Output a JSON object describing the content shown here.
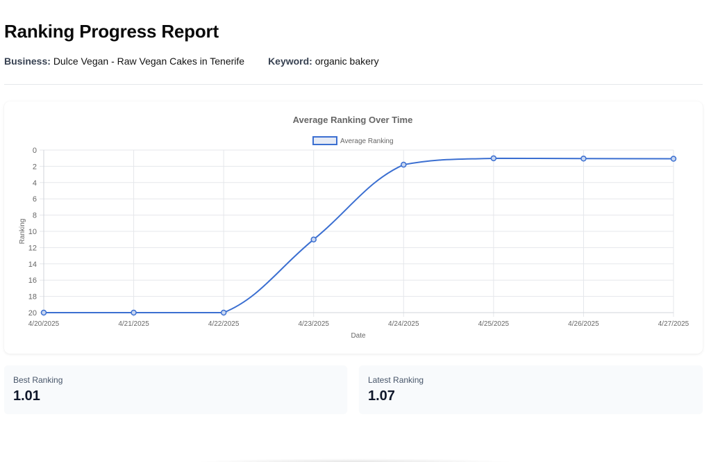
{
  "report": {
    "title": "Ranking Progress Report",
    "business_label": "Business:",
    "business_value": "Dulce Vegan - Raw Vegan Cakes in Tenerife",
    "keyword_label": "Keyword:",
    "keyword_value": "organic bakery"
  },
  "stats": {
    "best_label": "Best Ranking",
    "best_value": "1.01",
    "latest_label": "Latest Ranking",
    "latest_value": "1.07"
  },
  "colors": {
    "series": "#3b6fd1",
    "grid": "#e5e7eb",
    "text": "#666666"
  },
  "chart_data": {
    "type": "line",
    "title": "Average Ranking Over Time",
    "xlabel": "Date",
    "ylabel": "Ranking",
    "categories": [
      "4/20/2025",
      "4/21/2025",
      "4/22/2025",
      "4/23/2025",
      "4/24/2025",
      "4/25/2025",
      "4/26/2025",
      "4/27/2025"
    ],
    "series": [
      {
        "name": "Average Ranking",
        "values": [
          20,
          20,
          20,
          11,
          1.8,
          1.01,
          1.05,
          1.07
        ]
      }
    ],
    "ylim": [
      0,
      20
    ],
    "y_reversed": true,
    "y_ticks": [
      0,
      2,
      4,
      6,
      8,
      10,
      12,
      14,
      16,
      18,
      20
    ],
    "grid": true,
    "legend_position": "top-center"
  }
}
